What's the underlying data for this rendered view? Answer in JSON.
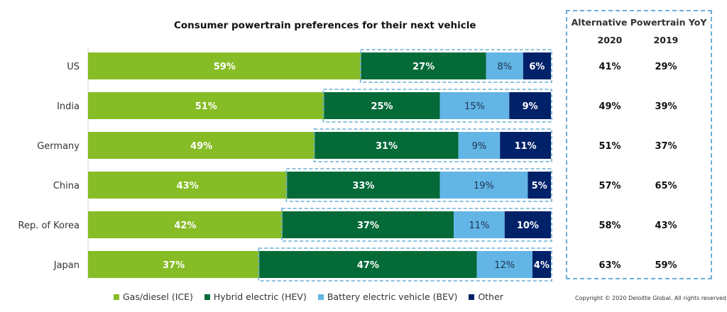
{
  "chart_data": {
    "type": "bar",
    "orientation": "horizontal",
    "stacked": true,
    "title": "Consumer powertrain preferences for their next vehicle",
    "categories": [
      "US",
      "India",
      "Germany",
      "China",
      "Rep. of Korea",
      "Japan"
    ],
    "series": [
      {
        "name": "Gas/diesel (ICE)",
        "color": "#86bc25",
        "values": [
          59,
          51,
          49,
          43,
          42,
          37
        ]
      },
      {
        "name": "Hybrid electric (HEV)",
        "color": "#046a38",
        "values": [
          27,
          25,
          31,
          33,
          37,
          47
        ]
      },
      {
        "name": "Battery electric vehicle (BEV)",
        "color": "#62b5e5",
        "values": [
          8,
          15,
          9,
          19,
          11,
          12
        ]
      },
      {
        "name": "Other",
        "color": "#012169",
        "values": [
          6,
          9,
          11,
          5,
          10,
          4
        ]
      }
    ],
    "xlim": [
      0,
      100
    ],
    "legend": "bottom"
  },
  "yoy": {
    "title": "Alternative Powertrain YoY",
    "headers": [
      "2020",
      "2019"
    ],
    "rows": [
      [
        "41%",
        "29%"
      ],
      [
        "49%",
        "39%"
      ],
      [
        "51%",
        "37%"
      ],
      [
        "57%",
        "65%"
      ],
      [
        "58%",
        "43%"
      ],
      [
        "63%",
        "59%"
      ]
    ]
  },
  "copyright": "Copyright © 2020 Deloitte Global. All rights reserved."
}
